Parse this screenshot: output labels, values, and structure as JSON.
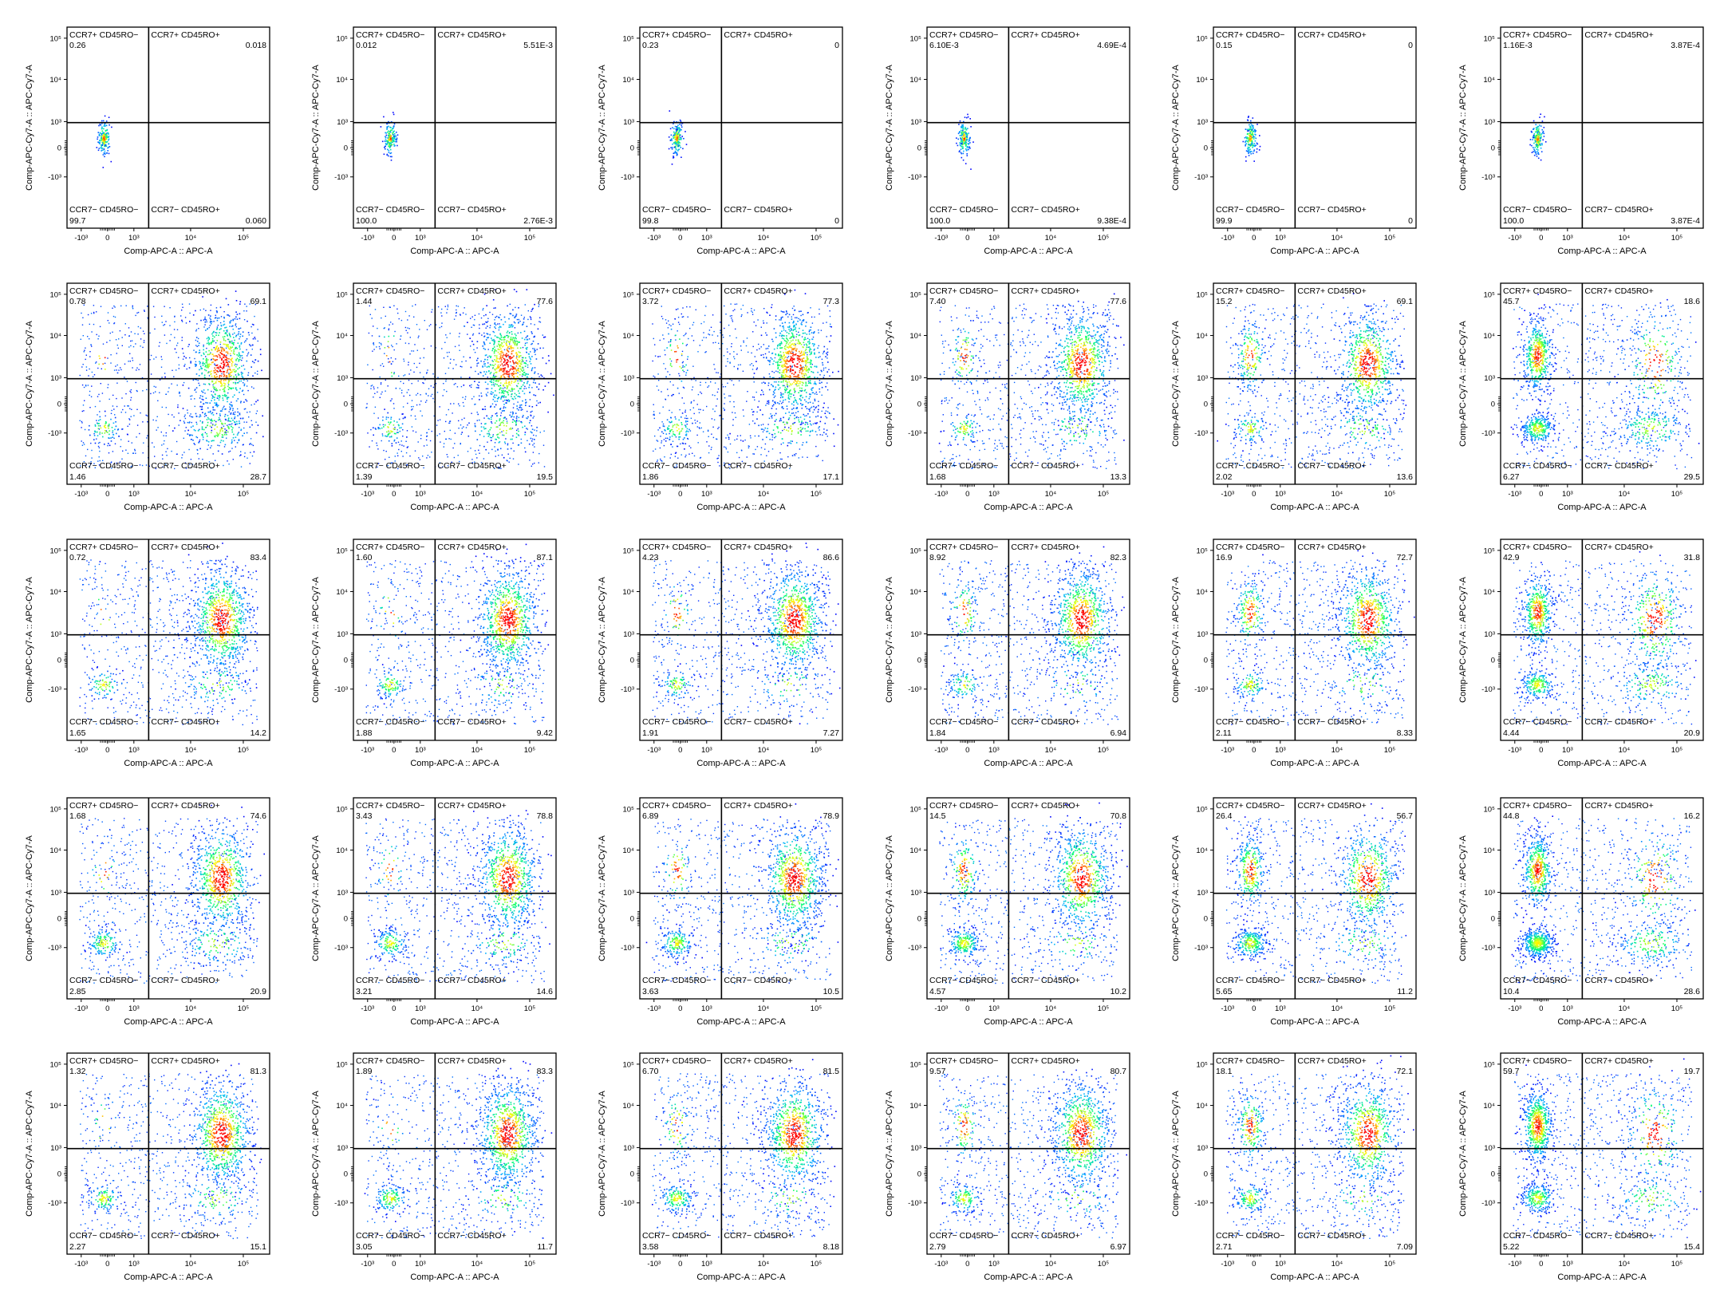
{
  "chart_data": {
    "type": "scatter",
    "rendering": "flow-cytometry-density-plot",
    "layout": {
      "rows": 5,
      "cols": 6
    },
    "xlabel": "Comp-APC-A :: APC-A",
    "ylabel": "Comp-APC-Cy7-A :: APC-Cy7-A",
    "axis_scale": "biexponential",
    "x_ticks": [
      "-10³",
      "0",
      "10³",
      "10⁴",
      "10⁵"
    ],
    "y_ticks": [
      "10⁵",
      "10⁴",
      "10³",
      "0",
      "-10³"
    ],
    "gate_labels": {
      "ul": "CCR7+ CD45RO−",
      "ur": "CCR7+ CD45RO+",
      "ll": "CCR7− CD45RO−",
      "lr": "CCR7− CD45RO+"
    },
    "density_colors": [
      "#0000ff",
      "#00bfff",
      "#00ff80",
      "#ffff00",
      "#ff0000"
    ],
    "panels": [
      {
        "row": 1,
        "col": 1,
        "ul": "0.26",
        "ur": "0.018",
        "ll": "99.7",
        "lr": "0.060"
      },
      {
        "row": 1,
        "col": 2,
        "ul": "0.012",
        "ur": "5.51E-3",
        "ll": "100.0",
        "lr": "2.76E-3"
      },
      {
        "row": 1,
        "col": 3,
        "ul": "0.23",
        "ur": "0",
        "ll": "99.8",
        "lr": "0"
      },
      {
        "row": 1,
        "col": 4,
        "ul": "6.10E-3",
        "ur": "4.69E-4",
        "ll": "100.0",
        "lr": "9.38E-4"
      },
      {
        "row": 1,
        "col": 5,
        "ul": "0.15",
        "ur": "0",
        "ll": "99.9",
        "lr": "0"
      },
      {
        "row": 1,
        "col": 6,
        "ul": "1.16E-3",
        "ur": "3.87E-4",
        "ll": "100.0",
        "lr": "3.87E-4"
      },
      {
        "row": 2,
        "col": 1,
        "ul": "0.78",
        "ur": "69.1",
        "ll": "1.46",
        "lr": "28.7"
      },
      {
        "row": 2,
        "col": 2,
        "ul": "1.44",
        "ur": "77.6",
        "ll": "1.39",
        "lr": "19.5"
      },
      {
        "row": 2,
        "col": 3,
        "ul": "3.72",
        "ur": "77.3",
        "ll": "1.86",
        "lr": "17.1"
      },
      {
        "row": 2,
        "col": 4,
        "ul": "7.40",
        "ur": "77.6",
        "ll": "1.68",
        "lr": "13.3"
      },
      {
        "row": 2,
        "col": 5,
        "ul": "15.2",
        "ur": "69.1",
        "ll": "2.02",
        "lr": "13.6"
      },
      {
        "row": 2,
        "col": 6,
        "ul": "45.7",
        "ur": "18.6",
        "ll": "6.27",
        "lr": "29.5"
      },
      {
        "row": 3,
        "col": 1,
        "ul": "0.72",
        "ur": "83.4",
        "ll": "1.65",
        "lr": "14.2"
      },
      {
        "row": 3,
        "col": 2,
        "ul": "1.60",
        "ur": "87.1",
        "ll": "1.88",
        "lr": "9.42"
      },
      {
        "row": 3,
        "col": 3,
        "ul": "4.23",
        "ur": "86.6",
        "ll": "1.91",
        "lr": "7.27"
      },
      {
        "row": 3,
        "col": 4,
        "ul": "8.92",
        "ur": "82.3",
        "ll": "1.84",
        "lr": "6.94"
      },
      {
        "row": 3,
        "col": 5,
        "ul": "16.9",
        "ur": "72.7",
        "ll": "2.11",
        "lr": "8.33"
      },
      {
        "row": 3,
        "col": 6,
        "ul": "42.9",
        "ur": "31.8",
        "ll": "4.44",
        "lr": "20.9"
      },
      {
        "row": 4,
        "col": 1,
        "ul": "1.68",
        "ur": "74.6",
        "ll": "2.85",
        "lr": "20.9"
      },
      {
        "row": 4,
        "col": 2,
        "ul": "3.43",
        "ur": "78.8",
        "ll": "3.21",
        "lr": "14.6"
      },
      {
        "row": 4,
        "col": 3,
        "ul": "6.89",
        "ur": "78.9",
        "ll": "3.63",
        "lr": "10.5"
      },
      {
        "row": 4,
        "col": 4,
        "ul": "14.5",
        "ur": "70.8",
        "ll": "4.57",
        "lr": "10.2"
      },
      {
        "row": 4,
        "col": 5,
        "ul": "26.4",
        "ur": "56.7",
        "ll": "5.65",
        "lr": "11.2"
      },
      {
        "row": 4,
        "col": 6,
        "ul": "44.8",
        "ur": "16.2",
        "ll": "10.4",
        "lr": "28.6"
      },
      {
        "row": 5,
        "col": 1,
        "ul": "1.32",
        "ur": "81.3",
        "ll": "2.27",
        "lr": "15.1"
      },
      {
        "row": 5,
        "col": 2,
        "ul": "1.89",
        "ur": "83.3",
        "ll": "3.05",
        "lr": "11.7"
      },
      {
        "row": 5,
        "col": 3,
        "ul": "6.70",
        "ur": "81.5",
        "ll": "3.58",
        "lr": "8.18"
      },
      {
        "row": 5,
        "col": 4,
        "ul": "9.57",
        "ur": "80.7",
        "ll": "2.79",
        "lr": "6.97"
      },
      {
        "row": 5,
        "col": 5,
        "ul": "18.1",
        "ur": "72.1",
        "ll": "2.71",
        "lr": "7.09"
      },
      {
        "row": 5,
        "col": 6,
        "ul": "59.7",
        "ur": "19.7",
        "ll": "5.22",
        "lr": "15.4"
      }
    ]
  }
}
